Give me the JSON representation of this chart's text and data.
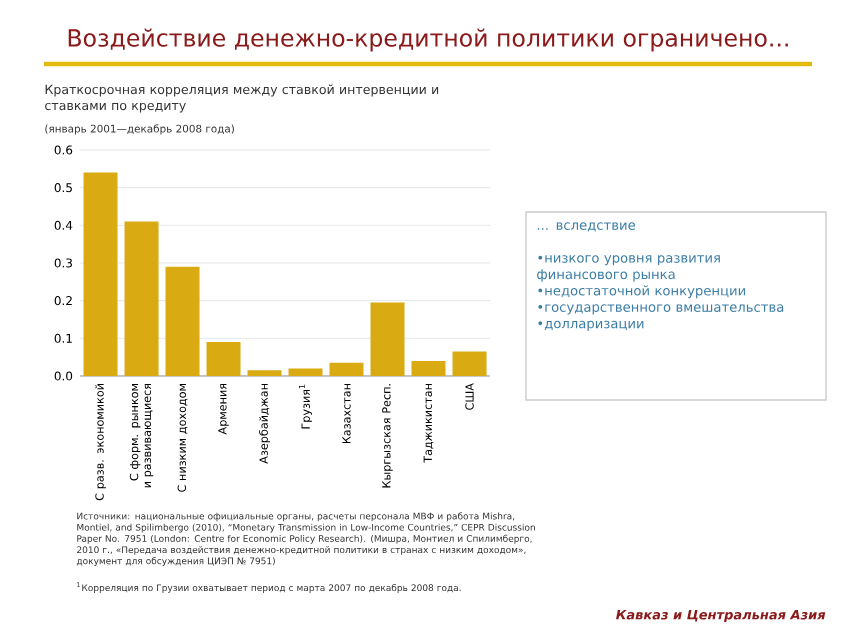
{
  "chart_data": {
    "type": "bar",
    "title": "Воздействие денежно-кредитной политики ограничено...",
    "subtitle": "Краткосрочная корреляция между ставкой интервенции и ставками по кредиту",
    "categories": [
      "С разв. экономикой",
      "С форм. рынком и развивающиеся",
      "С низким доходом",
      "Армения",
      "Азербайджан",
      "Грузия$^{1}$",
      "Казахстан",
      "Кыргызская Респ.",
      "Таджикистан",
      "США"
    ],
    "values": [
      0.54,
      0.41,
      0.29,
      0.09,
      0.015,
      0.02,
      0.035,
      0.195,
      0.04,
      0.065
    ],
    "color": "#d9aa12",
    "ylim": [
      0,
      0.6
    ],
    "yticks": [
      {
        "value": 0,
        "label": "0.0"
      },
      0.1,
      0.2,
      0.3,
      0.4,
      0.5,
      0.6
    ],
    "grid": "y",
    "annotations": [
      "(январь 2001—декабрь 2008 года)",
      "... вследствие",
      "•низкого уровня развития финансового рынка",
      "•недостаточной конкуренции",
      "•государственного вмешательства",
      "•долларизации",
      "Источники: национальные официальные органы, расчеты персонала МВФ и работа Mishra, Montiel, and Spilimbergo (2010), “Monetary Transmission in Low-Income Countries,” CEPR Discussion Paper No. 7951 (London: Centre for Economic Policy Research). (Мишра, Монтиел и Спилимберго, 2010 г., «Передача воздействия денежно-кредитной политики в странах с низким доходом», документ для обсуждения ЦИЭП № 7951)",
      "$^{1}$Корреляция по Грузии охватывает период с марта 2007 по декабрь 2008 года.",
      "Кавказ и Центральная Азия"
    ]
  }
}
